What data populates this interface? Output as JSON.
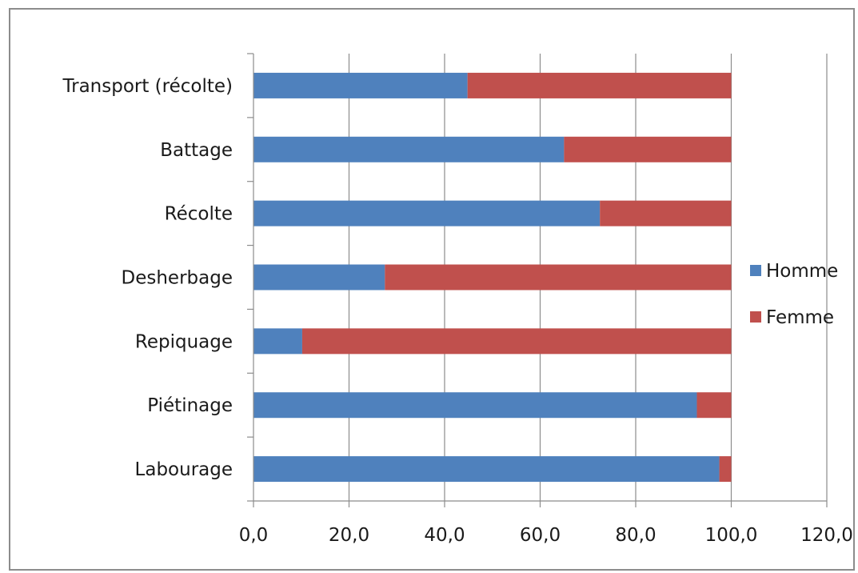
{
  "chart_data": {
    "type": "bar",
    "orientation": "horizontal",
    "stacked": true,
    "title": "",
    "xlabel": "",
    "ylabel": "",
    "categories": [
      "Labourage",
      "Piétinage",
      "Repiquage",
      "Desherbage",
      "Récolte",
      "Battage",
      "Transport (récolte)"
    ],
    "series": [
      {
        "name": "Homme",
        "color": "#4f81bd",
        "values": [
          97.5,
          92.8,
          10.2,
          27.5,
          72.5,
          65.0,
          44.8
        ]
      },
      {
        "name": "Femme",
        "color": "#c0504d",
        "values": [
          2.5,
          7.2,
          89.8,
          72.5,
          27.5,
          35.0,
          55.2
        ]
      }
    ],
    "xlim": [
      0,
      120
    ],
    "xticks": [
      "0,0",
      "20,0",
      "40,0",
      "60,0",
      "80,0",
      "100,0",
      "120,0"
    ],
    "grid": "vertical",
    "legend": "right"
  }
}
